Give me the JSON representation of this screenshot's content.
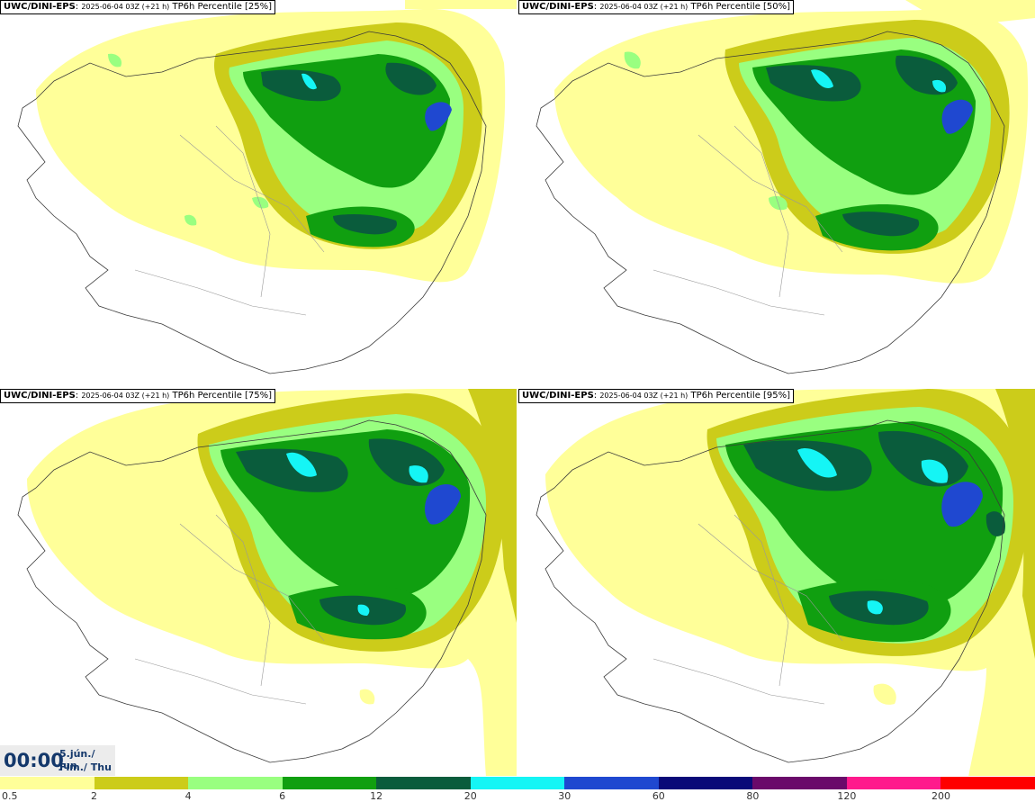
{
  "panels": [
    {
      "model": "UWC/DINI-EPS",
      "meta": "2025-06-04 03Z (+21 h)",
      "field": "TP6h Percentile [25%]"
    },
    {
      "model": "UWC/DINI-EPS",
      "meta": "2025-06-04 03Z (+21 h)",
      "field": "TP6h Percentile [50%]"
    },
    {
      "model": "UWC/DINI-EPS",
      "meta": "2025-06-04 03Z (+21 h)",
      "field": "TP6h Percentile [75%]"
    },
    {
      "model": "UWC/DINI-EPS",
      "meta": "2025-06-04 03Z (+21 h)",
      "field": "TP6h Percentile [95%]"
    }
  ],
  "valid_time": {
    "clock": "00:00",
    "line1": "5.jún./ Jun",
    "line2": "Fim./ Thu"
  },
  "legend": {
    "labels": [
      "0.5",
      "2",
      "4",
      "6",
      "12",
      "20",
      "30",
      "60",
      "80",
      "120",
      "200"
    ],
    "colors": [
      "#ffff99",
      "#cccc1a",
      "#99ff80",
      "#109f10",
      "#0a5c3c",
      "#15f5f5",
      "#1f48d0",
      "#0a0a78",
      "#6a0a6a",
      "#ff1a8c",
      "#ff0000"
    ]
  },
  "map_colors": {
    "land_line": "#3a3a3a",
    "border_line": "#999999"
  }
}
